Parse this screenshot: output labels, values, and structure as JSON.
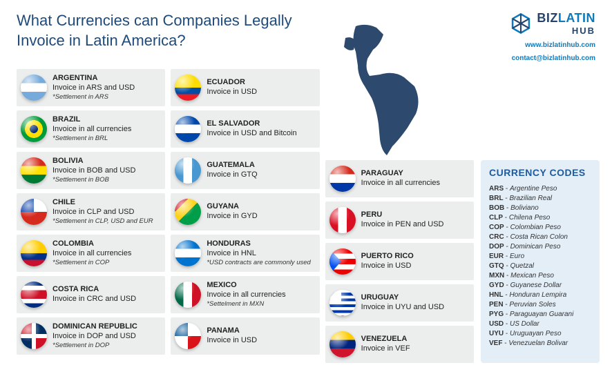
{
  "title": "What Currencies can Companies Legally Invoice in Latin America?",
  "logo": {
    "biz": "BIZ",
    "latin": "LATIN",
    "hub": "HUB",
    "color_primary": "#26436b",
    "color_accent": "#0d7abc"
  },
  "contact": {
    "web": "www.bizlatinhub.com",
    "email": "contact@bizlatinhub.com"
  },
  "map_fill": "#2d4a6e",
  "background_color": "#ffffff",
  "card_bg": "#eceded",
  "codes_bg": "#e3eef7",
  "title_color": "#1e4a7a",
  "columns": [
    [
      {
        "flag": "f-ar",
        "name": "ARGENTINA",
        "inv": "Invoice in ARS and USD",
        "note": "*Settlement in ARS"
      },
      {
        "flag": "f-br",
        "name": "BRAZIL",
        "inv": "Invoice in all currencies",
        "note": "*Settlement in BRL"
      },
      {
        "flag": "f-bo",
        "name": "BOLIVIA",
        "inv": "Invoice in BOB and USD",
        "note": "*Settlement in BOB"
      },
      {
        "flag": "f-cl",
        "name": "CHILE",
        "inv": "Invoice in CLP and USD",
        "note": "*Settlement in CLP, USD and EUR"
      },
      {
        "flag": "f-co",
        "name": "COLOMBIA",
        "inv": "Invoice in all currencies",
        "note": "*Settlement in COP"
      },
      {
        "flag": "f-cr",
        "name": "COSTA RICA",
        "inv": "Invoice in CRC and USD",
        "note": ""
      },
      {
        "flag": "f-do",
        "name": "DOMINICAN REPUBLIC",
        "inv": "Invoice in DOP and USD",
        "note": "*Settlement in DOP"
      }
    ],
    [
      {
        "flag": "f-ec",
        "name": "ECUADOR",
        "inv": "Invoice in USD",
        "note": ""
      },
      {
        "flag": "f-sv",
        "name": "EL SALVADOR",
        "inv": "Invoice in USD and Bitcoin",
        "note": ""
      },
      {
        "flag": "f-gt",
        "name": "GUATEMALA",
        "inv": "Invoice in GTQ",
        "note": ""
      },
      {
        "flag": "f-gy",
        "name": "GUYANA",
        "inv": "Invoice in GYD",
        "note": ""
      },
      {
        "flag": "f-hn",
        "name": "HONDURAS",
        "inv": "Invoice in HNL",
        "note": "*USD contracts are commonly used"
      },
      {
        "flag": "f-mx",
        "name": "MEXICO",
        "inv": "Invoice in all currencies",
        "note": "*Settelment in MXN"
      },
      {
        "flag": "f-pa",
        "name": "PANAMA",
        "inv": "Invoice in USD",
        "note": ""
      }
    ],
    [
      {
        "flag": "f-py",
        "name": "PARAGUAY",
        "inv": "Invoice in all currencies",
        "note": ""
      },
      {
        "flag": "f-pe",
        "name": "PERU",
        "inv": "Invoice in PEN and USD",
        "note": ""
      },
      {
        "flag": "f-pr",
        "name": "PUERTO RICO",
        "inv": "Invoice in USD",
        "note": ""
      },
      {
        "flag": "f-uy",
        "name": "URUGUAY",
        "inv": "Invoice in UYU and USD",
        "note": ""
      },
      {
        "flag": "f-ve",
        "name": "VENEZUELA",
        "inv": "Invoice in VEF",
        "note": ""
      }
    ]
  ],
  "codes_title": "CURRENCY CODES",
  "codes": [
    {
      "c": "ARS",
      "n": "Argentine Peso"
    },
    {
      "c": "BRL",
      "n": "Brazilian Real"
    },
    {
      "c": "BOB",
      "n": "Boliviano"
    },
    {
      "c": "CLP",
      "n": "Chilena Peso"
    },
    {
      "c": "COP",
      "n": "Colombian Peso"
    },
    {
      "c": "CRC",
      "n": "Costa Rican Colon"
    },
    {
      "c": "DOP",
      "n": "Dominican Peso"
    },
    {
      "c": "EUR",
      "n": "Euro"
    },
    {
      "c": "GTQ",
      "n": "Quetzal"
    },
    {
      "c": "MXN",
      "n": "Mexican Peso"
    },
    {
      "c": "GYD",
      "n": "Guyanese Dollar"
    },
    {
      "c": "HNL",
      "n": "Honduran Lempira"
    },
    {
      "c": "PEN",
      "n": "Peruvian Soles"
    },
    {
      "c": "PYG",
      "n": "Paraguayan Guarani"
    },
    {
      "c": "USD",
      "n": "US Dollar"
    },
    {
      "c": "UYU",
      "n": "Uruguayan Peso"
    },
    {
      "c": "VEF",
      "n": "Venezuelan Bolivar"
    }
  ]
}
